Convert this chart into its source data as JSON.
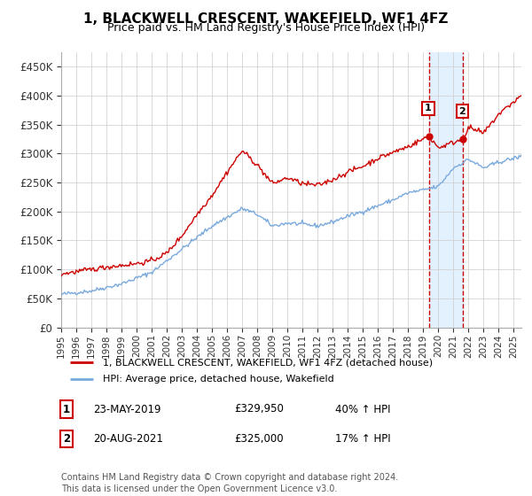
{
  "title": "1, BLACKWELL CRESCENT, WAKEFIELD, WF1 4FZ",
  "subtitle": "Price paid vs. HM Land Registry's House Price Index (HPI)",
  "ylabel_ticks": [
    "£0",
    "£50K",
    "£100K",
    "£150K",
    "£200K",
    "£250K",
    "£300K",
    "£350K",
    "£400K",
    "£450K"
  ],
  "ylim": [
    0,
    475000
  ],
  "xlim_start": 1995.0,
  "xlim_end": 2025.5,
  "legend_line1": "1, BLACKWELL CRESCENT, WAKEFIELD, WF1 4FZ (detached house)",
  "legend_line2": "HPI: Average price, detached house, Wakefield",
  "sale1_label": "1",
  "sale1_date": "23-MAY-2019",
  "sale1_price": "£329,950",
  "sale1_hpi": "40% ↑ HPI",
  "sale1_x": 2019.38,
  "sale1_y": 329950,
  "sale2_label": "2",
  "sale2_date": "20-AUG-2021",
  "sale2_price": "£325,000",
  "sale2_hpi": "17% ↑ HPI",
  "sale2_x": 2021.63,
  "sale2_y": 325000,
  "red_color": "#cc0000",
  "blue_color": "#7aaadd",
  "shade_color": "#ddeeff",
  "footnote": "Contains HM Land Registry data © Crown copyright and database right 2024.\nThis data is licensed under the Open Government Licence v3.0."
}
